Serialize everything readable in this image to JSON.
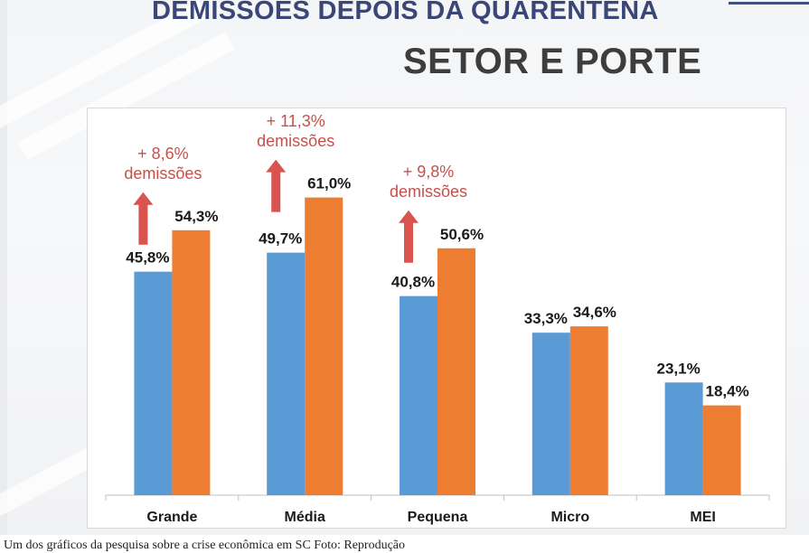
{
  "header": {
    "title": "DEMISSOES DEPOIS DA QUARENTENA",
    "subtitle": "SETOR E PORTE"
  },
  "chart_data": {
    "type": "bar",
    "categories": [
      "Grande",
      "Média",
      "Pequena",
      "Micro",
      "MEI"
    ],
    "series": [
      {
        "values": [
          45.8,
          49.7,
          40.8,
          33.3,
          23.1
        ],
        "labels": [
          "45,8%",
          "49,7%",
          "40,8%",
          "33,3%",
          "23,1%"
        ],
        "color": "#5b9bd5"
      },
      {
        "values": [
          54.3,
          61.0,
          50.6,
          34.6,
          18.4
        ],
        "labels": [
          "54,3%",
          "61,0%",
          "50,6%",
          "34,6%",
          "18,4%"
        ],
        "color": "#ed7d31"
      }
    ],
    "ylim": [
      0,
      70
    ],
    "grid": false,
    "annotations": [
      {
        "category": "Grande",
        "lines": [
          "+ 8,6%",
          "demissões"
        ]
      },
      {
        "category": "Média",
        "lines": [
          "+ 11,3%",
          "demissões"
        ]
      },
      {
        "category": "Pequena",
        "lines": [
          "+ 9,8%",
          "demissões"
        ]
      }
    ],
    "annotation_color": "#d9534f"
  },
  "caption": "Um dos gráficos da pesquisa sobre a crise econômica em SC Foto: Reprodução"
}
